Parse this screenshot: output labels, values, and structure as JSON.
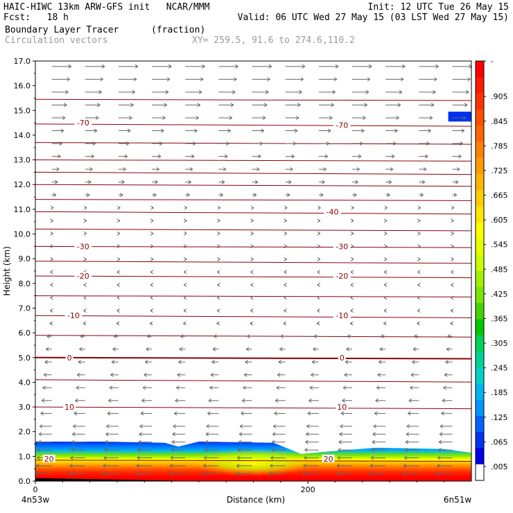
{
  "header": {
    "line1_left": "HAIC-HIWC 13km ARW-GFS init   NCAR/MMM",
    "line1_right": "Init: 12 UTC Tue 26 May 15",
    "line2_left": "Fcst:   18 h",
    "line2_right": "Valid: 06 UTC Wed 27 May 15 (03 LST Wed 27 May 15)",
    "line3_field": "Boundary Layer Tracer",
    "line3_units": "(fraction)",
    "line4_field": "Circulation vectors",
    "line4_xy": "XY= 259.5, 91.6 to 274.6,110.2"
  },
  "chart_data": {
    "type": "heatmap",
    "title": "Boundary Layer Tracer (fraction)",
    "xlabel": "Distance (km)",
    "ylabel": "Height (km)",
    "xlim": [
      0,
      320
    ],
    "ylim": [
      0,
      17
    ],
    "x_ticks": [
      0,
      200
    ],
    "x_end_labels": {
      "left": "4n53w",
      "right": "6n51w"
    },
    "y_ticks": [
      "0.0",
      "1.0",
      "2.0",
      "3.0",
      "4.0",
      "5.0",
      "6.0",
      "7.0",
      "8.0",
      "9.0",
      "10.0",
      "11.0",
      "12.0",
      "13.0",
      "14.0",
      "15.0",
      "16.0",
      "17.0"
    ],
    "colorbar": {
      "labels": [
        "-",
        ".905",
        ".845",
        ".785",
        ".725",
        ".665",
        ".605",
        ".545",
        ".485",
        ".425",
        ".365",
        ".305",
        ".245",
        ".185",
        ".125",
        ".065",
        ".005"
      ],
      "colors": [
        "#ff0000",
        "#ff1a00",
        "#ff3300",
        "#ff4d00",
        "#ff6600",
        "#ff8000",
        "#ff9900",
        "#ffb300",
        "#ffcc00",
        "#ffe600",
        "#ffff00",
        "#e6ff00",
        "#c8ff00",
        "#a0f000",
        "#78e600",
        "#46d200",
        "#00c800",
        "#00d25a",
        "#00d296",
        "#00d2c8",
        "#00b4f0",
        "#0096ff",
        "#0064ff",
        "#0032f0",
        "#0000e6",
        "#ffffff"
      ]
    },
    "temperature_contour_labels": [
      {
        "label": "20",
        "x": 10,
        "y": 0.9
      },
      {
        "label": "20",
        "x": 215,
        "y": 0.9
      },
      {
        "label": "10",
        "x": 25,
        "y": 3.0
      },
      {
        "label": "10",
        "x": 225,
        "y": 3.0
      },
      {
        "label": "0",
        "x": 25,
        "y": 5.0
      },
      {
        "label": "0",
        "x": 225,
        "y": 5.0
      },
      {
        "label": "-10",
        "x": 28,
        "y": 6.7
      },
      {
        "label": "-10",
        "x": 225,
        "y": 6.7
      },
      {
        "label": "-20",
        "x": 35,
        "y": 8.3
      },
      {
        "label": "-20",
        "x": 225,
        "y": 8.3
      },
      {
        "label": "-30",
        "x": 35,
        "y": 9.5
      },
      {
        "label": "-30",
        "x": 225,
        "y": 9.5
      },
      {
        "label": "-40",
        "x": 218,
        "y": 10.9
      },
      {
        "label": "-70",
        "x": 35,
        "y": 14.5
      },
      {
        "label": "-70",
        "x": 225,
        "y": 14.4
      }
    ],
    "temperature_contour_levels_km": [
      0.85,
      3.0,
      4.1,
      5.0,
      5.9,
      6.7,
      7.5,
      8.3,
      8.9,
      9.5,
      10.2,
      10.9,
      11.4,
      12.0,
      12.5,
      13.0,
      13.7,
      14.45,
      15.45
    ],
    "tracer_top_km": [
      [
        0,
        1.6
      ],
      [
        50,
        1.6
      ],
      [
        95,
        1.55
      ],
      [
        105,
        1.4
      ],
      [
        120,
        1.6
      ],
      [
        175,
        1.55
      ],
      [
        195,
        1.1
      ],
      [
        215,
        1.2
      ],
      [
        250,
        1.35
      ],
      [
        300,
        1.3
      ],
      [
        320,
        1.15
      ]
    ],
    "tracer_region_high_value": "~0.9 below 0.8 km",
    "upper_level_tracer_patch": {
      "x_range": [
        303,
        320
      ],
      "y_range": [
        14.55,
        14.95
      ]
    },
    "wind_vectors": {
      "low_levels": "easterly (pointing left) below ~6.5 km",
      "mid_levels": "weak, mixed directions 6.5-12 km",
      "upper_levels": "westerly (pointing right) above ~12 km, strongest near 15-16 km"
    }
  }
}
